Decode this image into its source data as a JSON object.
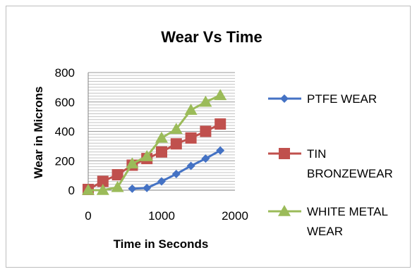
{
  "chart_data": {
    "type": "line",
    "title": "Wear Vs Time",
    "xlabel": "Time in Seconds",
    "ylabel": "Wear in Microns",
    "xlim": [
      0,
      2000
    ],
    "ylim": [
      0,
      800
    ],
    "x_ticks": [
      "0",
      "1000",
      "2000"
    ],
    "y_ticks": [
      "0",
      "200",
      "400",
      "600",
      "800"
    ],
    "minor_gridlines": true,
    "legend_position": "right",
    "series": [
      {
        "name": "PTFE WEAR",
        "legend_lines": [
          "PTFE WEAR"
        ],
        "color": "#4472c4",
        "marker": "diamond",
        "points": [
          [
            600,
            10
          ],
          [
            800,
            15
          ],
          [
            1000,
            60
          ],
          [
            1200,
            110
          ],
          [
            1400,
            165
          ],
          [
            1600,
            215
          ],
          [
            1800,
            270
          ]
        ]
      },
      {
        "name": "TIN BRONZEWEAR",
        "legend_lines": [
          "TIN",
          "BRONZEWEAR"
        ],
        "color": "#c0504d",
        "marker": "square",
        "points": [
          [
            0,
            5
          ],
          [
            200,
            60
          ],
          [
            400,
            105
          ],
          [
            600,
            170
          ],
          [
            800,
            215
          ],
          [
            1000,
            260
          ],
          [
            1200,
            315
          ],
          [
            1400,
            355
          ],
          [
            1600,
            400
          ],
          [
            1800,
            450
          ]
        ]
      },
      {
        "name": "WHITE METAL WEAR",
        "legend_lines": [
          "WHITE METAL",
          "WEAR"
        ],
        "color": "#9bbb59",
        "marker": "triangle",
        "points": [
          [
            0,
            0
          ],
          [
            200,
            0
          ],
          [
            400,
            20
          ],
          [
            600,
            180
          ],
          [
            800,
            230
          ],
          [
            1000,
            355
          ],
          [
            1200,
            415
          ],
          [
            1400,
            545
          ],
          [
            1600,
            600
          ],
          [
            1800,
            645
          ]
        ]
      }
    ]
  }
}
